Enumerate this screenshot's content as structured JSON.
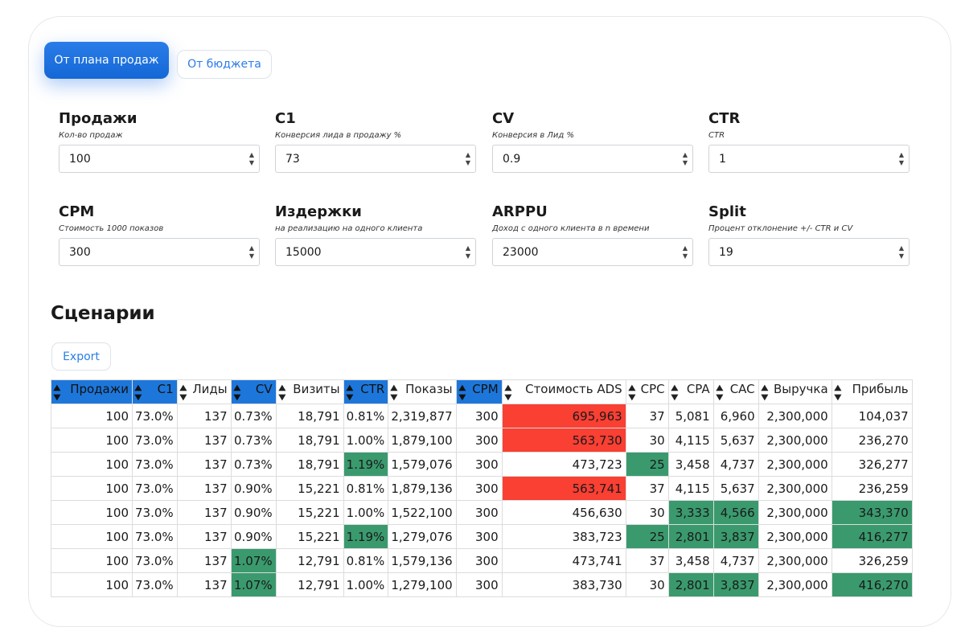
{
  "tabs": [
    {
      "label": "От плана продаж",
      "active": true
    },
    {
      "label": "От бюджета",
      "active": false
    }
  ],
  "fields": [
    {
      "title": "Продажи",
      "hint": "Кол-во продаж",
      "value": "100"
    },
    {
      "title": "C1",
      "hint": "Конверсия лида в продажу %",
      "value": "73"
    },
    {
      "title": "CV",
      "hint": "Конверсия в Лид %",
      "value": "0.9"
    },
    {
      "title": "CTR",
      "hint": "CTR",
      "value": "1"
    },
    {
      "title": "CPM",
      "hint": "Стоимость 1000 показов",
      "value": "300"
    },
    {
      "title": "Издержки",
      "hint": "на реализацию на одного клиента",
      "value": "15000"
    },
    {
      "title": "ARPPU",
      "hint": "Доход с одного клиента в n времени",
      "value": "23000"
    },
    {
      "title": "Split",
      "hint": "Процент отклонение +/- CTR и CV",
      "value": "19"
    }
  ],
  "scenarios_title": "Сценарии",
  "export_label": "Export",
  "colors": {
    "accent": "#1d77db",
    "bad": "#fa3f33",
    "good": "#3a9a6e"
  },
  "table": {
    "headers": [
      {
        "label": "Продажи",
        "hl": true
      },
      {
        "label": "C1",
        "hl": true
      },
      {
        "label": "Лиды",
        "hl": false
      },
      {
        "label": "CV",
        "hl": true
      },
      {
        "label": "Визиты",
        "hl": false
      },
      {
        "label": "CTR",
        "hl": true
      },
      {
        "label": "Показы",
        "hl": false
      },
      {
        "label": "CPM",
        "hl": true
      },
      {
        "label": "Стоимость ADS",
        "hl": false
      },
      {
        "label": "CPC",
        "hl": false
      },
      {
        "label": "CPA",
        "hl": false
      },
      {
        "label": "CAC",
        "hl": false
      },
      {
        "label": "Выручка",
        "hl": false
      },
      {
        "label": "Прибыль",
        "hl": false
      }
    ],
    "rows": [
      {
        "cells": [
          "100",
          "73.0%",
          "137",
          "0.73%",
          "18,791",
          "0.81%",
          "2,319,877",
          "300",
          "695,963",
          "37",
          "5,081",
          "6,960",
          "2,300,000",
          "104,037"
        ],
        "hl": [
          "",
          "",
          "",
          "",
          "",
          "",
          "",
          "",
          "r",
          "",
          "",
          "",
          "",
          ""
        ]
      },
      {
        "cells": [
          "100",
          "73.0%",
          "137",
          "0.73%",
          "18,791",
          "1.00%",
          "1,879,100",
          "300",
          "563,730",
          "30",
          "4,115",
          "5,637",
          "2,300,000",
          "236,270"
        ],
        "hl": [
          "",
          "",
          "",
          "",
          "",
          "",
          "",
          "",
          "r",
          "",
          "",
          "",
          "",
          ""
        ]
      },
      {
        "cells": [
          "100",
          "73.0%",
          "137",
          "0.73%",
          "18,791",
          "1.19%",
          "1,579,076",
          "300",
          "473,723",
          "25",
          "3,458",
          "4,737",
          "2,300,000",
          "326,277"
        ],
        "hl": [
          "",
          "",
          "",
          "",
          "",
          "g",
          "",
          "",
          "",
          "g",
          "",
          "",
          "",
          ""
        ]
      },
      {
        "cells": [
          "100",
          "73.0%",
          "137",
          "0.90%",
          "15,221",
          "0.81%",
          "1,879,136",
          "300",
          "563,741",
          "37",
          "4,115",
          "5,637",
          "2,300,000",
          "236,259"
        ],
        "hl": [
          "",
          "",
          "",
          "",
          "",
          "",
          "",
          "",
          "r",
          "",
          "",
          "",
          "",
          ""
        ]
      },
      {
        "cells": [
          "100",
          "73.0%",
          "137",
          "0.90%",
          "15,221",
          "1.00%",
          "1,522,100",
          "300",
          "456,630",
          "30",
          "3,333",
          "4,566",
          "2,300,000",
          "343,370"
        ],
        "hl": [
          "",
          "",
          "",
          "",
          "",
          "",
          "",
          "",
          "",
          "",
          "g",
          "g",
          "",
          "g"
        ]
      },
      {
        "cells": [
          "100",
          "73.0%",
          "137",
          "0.90%",
          "15,221",
          "1.19%",
          "1,279,076",
          "300",
          "383,723",
          "25",
          "2,801",
          "3,837",
          "2,300,000",
          "416,277"
        ],
        "hl": [
          "",
          "",
          "",
          "",
          "",
          "g",
          "",
          "",
          "",
          "g",
          "g",
          "g",
          "",
          "g"
        ]
      },
      {
        "cells": [
          "100",
          "73.0%",
          "137",
          "1.07%",
          "12,791",
          "0.81%",
          "1,579,136",
          "300",
          "473,741",
          "37",
          "3,458",
          "4,737",
          "2,300,000",
          "326,259"
        ],
        "hl": [
          "",
          "",
          "",
          "g",
          "",
          "",
          "",
          "",
          "",
          "",
          "",
          "",
          "",
          ""
        ]
      },
      {
        "cells": [
          "100",
          "73.0%",
          "137",
          "1.07%",
          "12,791",
          "1.00%",
          "1,279,100",
          "300",
          "383,730",
          "30",
          "2,801",
          "3,837",
          "2,300,000",
          "416,270"
        ],
        "hl": [
          "",
          "",
          "",
          "g",
          "",
          "",
          "",
          "",
          "",
          "",
          "g",
          "g",
          "",
          "g"
        ]
      }
    ]
  }
}
